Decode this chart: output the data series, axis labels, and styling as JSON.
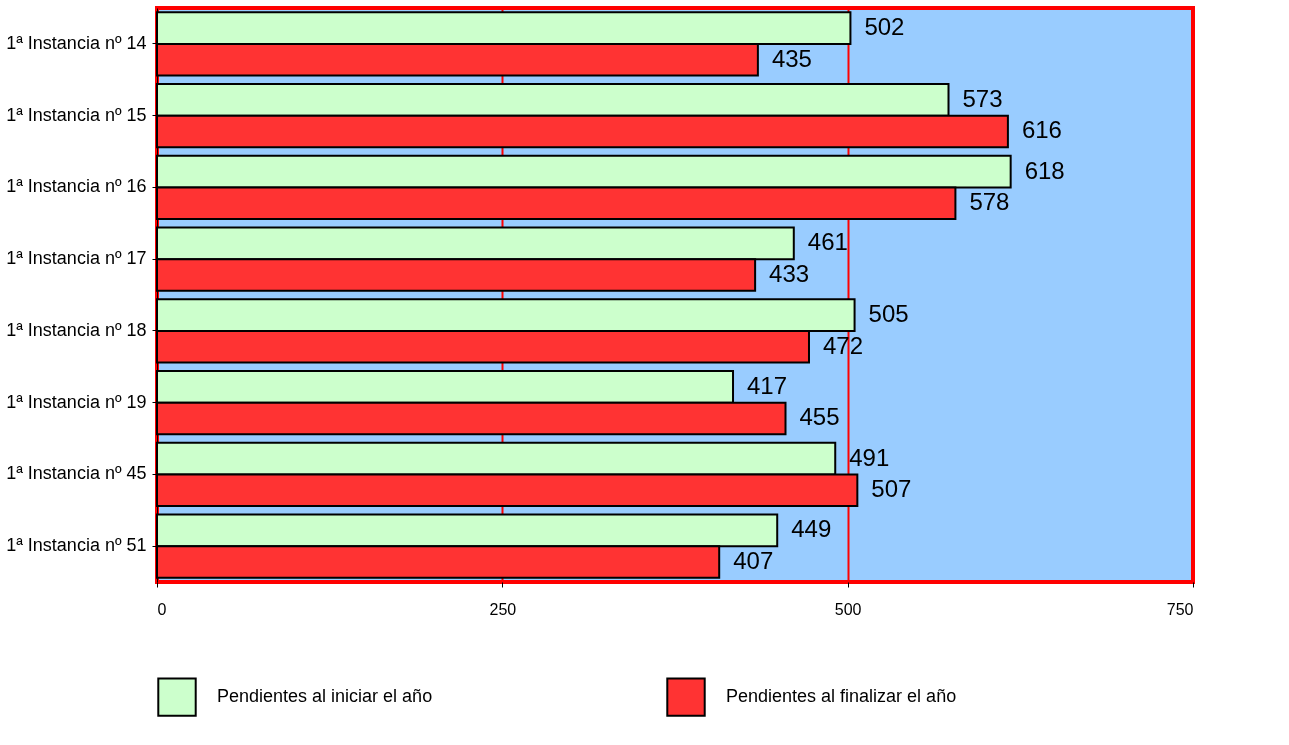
{
  "chart_data": {
    "type": "bar",
    "orientation": "horizontal",
    "categories": [
      "1ª Instancia nº 14",
      "1ª Instancia nº 15",
      "1ª Instancia nº 16",
      "1ª Instancia nº 17",
      "1ª Instancia nº 18",
      "1ª Instancia nº 19",
      "1ª Instancia nº 45",
      "1ª Instancia nº 51"
    ],
    "series": [
      {
        "name": "Pendientes al iniciar el año",
        "color": "#ccffcc",
        "values": [
          502,
          573,
          618,
          461,
          505,
          417,
          491,
          449
        ]
      },
      {
        "name": "Pendientes al finalizar el año",
        "color": "#ff3333",
        "values": [
          435,
          616,
          578,
          433,
          472,
          455,
          507,
          407
        ]
      }
    ],
    "xlim": [
      0,
      750
    ],
    "xticks": [
      0,
      250,
      500,
      750
    ],
    "grid": "x",
    "legend": "bottom",
    "data_labels": true
  }
}
